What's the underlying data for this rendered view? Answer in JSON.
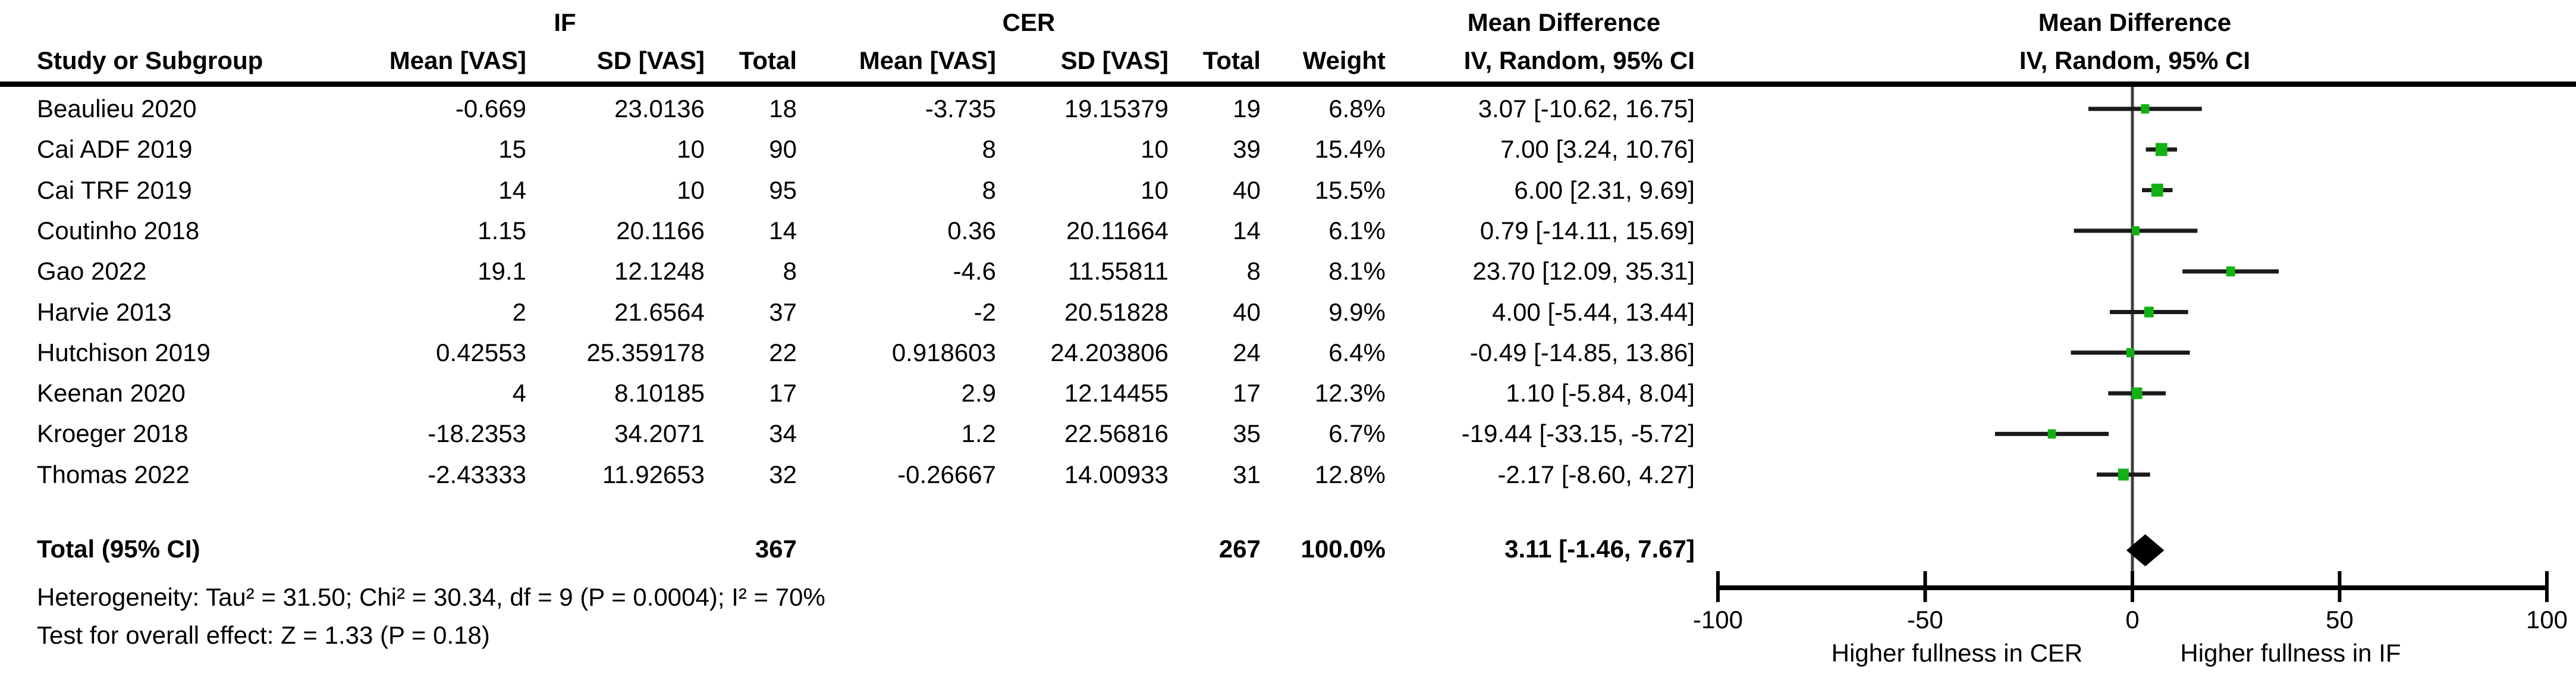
{
  "header": {
    "group_if": "IF",
    "group_cer": "CER",
    "group_md": "Mean Difference",
    "plot_title_line1": "Mean Difference",
    "plot_title_line2": "IV, Random, 95% CI"
  },
  "columns": {
    "study": "Study or Subgroup",
    "mean": "Mean [VAS]",
    "sd": "SD [VAS]",
    "total": "Total",
    "weight": "Weight",
    "iv_random": "IV, Random, 95% CI"
  },
  "chart_data": {
    "type": "forest",
    "effect_measure": "Mean Difference",
    "method": "IV, Random, 95% CI",
    "x_axis": {
      "min": -100,
      "max": 100,
      "ticks": [
        {
          "label": "-100",
          "value": -100
        },
        {
          "label": "-50",
          "value": -50
        },
        {
          "label": "0",
          "value": 0
        },
        {
          "label": "50",
          "value": 50
        },
        {
          "label": "100",
          "value": 100
        }
      ]
    },
    "axis_captions": {
      "left": "Higher fullness in CER",
      "right": "Higher fullness in IF"
    },
    "studies": [
      {
        "study": "Beaulieu 2020",
        "if_mean": "-0.669",
        "if_sd": "23.0136",
        "if_total": "18",
        "cer_mean": "-3.735",
        "cer_sd": "19.15379",
        "cer_total": "19",
        "weight": "6.8%",
        "weight_value": 6.8,
        "ci_text": "3.07 [-10.62, 16.75]",
        "md": 3.07,
        "ci_low": -10.62,
        "ci_high": 16.75
      },
      {
        "study": "Cai ADF 2019",
        "if_mean": "15",
        "if_sd": "10",
        "if_total": "90",
        "cer_mean": "8",
        "cer_sd": "10",
        "cer_total": "39",
        "weight": "15.4%",
        "weight_value": 15.4,
        "ci_text": "7.00 [3.24, 10.76]",
        "md": 7.0,
        "ci_low": 3.24,
        "ci_high": 10.76
      },
      {
        "study": "Cai TRF 2019",
        "if_mean": "14",
        "if_sd": "10",
        "if_total": "95",
        "cer_mean": "8",
        "cer_sd": "10",
        "cer_total": "40",
        "weight": "15.5%",
        "weight_value": 15.5,
        "ci_text": "6.00 [2.31, 9.69]",
        "md": 6.0,
        "ci_low": 2.31,
        "ci_high": 9.69
      },
      {
        "study": "Coutinho 2018",
        "if_mean": "1.15",
        "if_sd": "20.1166",
        "if_total": "14",
        "cer_mean": "0.36",
        "cer_sd": "20.11664",
        "cer_total": "14",
        "weight": "6.1%",
        "weight_value": 6.1,
        "ci_text": "0.79 [-14.11, 15.69]",
        "md": 0.79,
        "ci_low": -14.11,
        "ci_high": 15.69
      },
      {
        "study": "Gao 2022",
        "if_mean": "19.1",
        "if_sd": "12.1248",
        "if_total": "8",
        "cer_mean": "-4.6",
        "cer_sd": "11.55811",
        "cer_total": "8",
        "weight": "8.1%",
        "weight_value": 8.1,
        "ci_text": "23.70 [12.09, 35.31]",
        "md": 23.7,
        "ci_low": 12.09,
        "ci_high": 35.31
      },
      {
        "study": "Harvie 2013",
        "if_mean": "2",
        "if_sd": "21.6564",
        "if_total": "37",
        "cer_mean": "-2",
        "cer_sd": "20.51828",
        "cer_total": "40",
        "weight": "9.9%",
        "weight_value": 9.9,
        "ci_text": "4.00 [-5.44, 13.44]",
        "md": 4.0,
        "ci_low": -5.44,
        "ci_high": 13.44
      },
      {
        "study": "Hutchison 2019",
        "if_mean": "0.42553",
        "if_sd": "25.359178",
        "if_total": "22",
        "cer_mean": "0.918603",
        "cer_sd": "24.203806",
        "cer_total": "24",
        "weight": "6.4%",
        "weight_value": 6.4,
        "ci_text": "-0.49 [-14.85, 13.86]",
        "md": -0.49,
        "ci_low": -14.85,
        "ci_high": 13.86
      },
      {
        "study": "Keenan 2020",
        "if_mean": "4",
        "if_sd": "8.10185",
        "if_total": "17",
        "cer_mean": "2.9",
        "cer_sd": "12.14455",
        "cer_total": "17",
        "weight": "12.3%",
        "weight_value": 12.3,
        "ci_text": "1.10 [-5.84, 8.04]",
        "md": 1.1,
        "ci_low": -5.84,
        "ci_high": 8.04
      },
      {
        "study": "Kroeger 2018",
        "if_mean": "-18.2353",
        "if_sd": "34.2071",
        "if_total": "34",
        "cer_mean": "1.2",
        "cer_sd": "22.56816",
        "cer_total": "35",
        "weight": "6.7%",
        "weight_value": 6.7,
        "ci_text": "-19.44 [-33.15, -5.72]",
        "md": -19.44,
        "ci_low": -33.15,
        "ci_high": -5.72
      },
      {
        "study": "Thomas 2022",
        "if_mean": "-2.43333",
        "if_sd": "11.92653",
        "if_total": "32",
        "cer_mean": "-0.26667",
        "cer_sd": "14.00933",
        "cer_total": "31",
        "weight": "12.8%",
        "weight_value": 12.8,
        "ci_text": "-2.17 [-8.60, 4.27]",
        "md": -2.17,
        "ci_low": -8.6,
        "ci_high": 4.27
      }
    ],
    "total": {
      "label": "Total (95% CI)",
      "if_total": "367",
      "cer_total": "267",
      "weight": "100.0%",
      "ci_text": "3.11 [-1.46, 7.67]",
      "md": 3.11,
      "ci_low": -1.46,
      "ci_high": 7.67
    },
    "footnotes": {
      "heterogeneity": "Heterogeneity: Tau² = 31.50; Chi² = 30.34, df = 9 (P = 0.0004); I² = 70%",
      "overall_effect": "Test for overall effect: Z = 1.33 (P = 0.18)"
    },
    "colors": {
      "marker_green": "#12B012",
      "ci_line": "#1a1a1a",
      "zero_line": "#3f3f3f",
      "diamond": "#000000",
      "axis": "#000000"
    }
  }
}
